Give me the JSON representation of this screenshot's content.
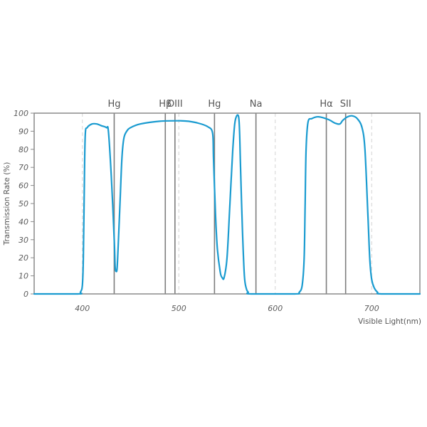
{
  "chart_data": {
    "type": "line",
    "xlabel": "Visible Light(nm)",
    "ylabel": "Transmission Rate (%)",
    "xlim": [
      350,
      750
    ],
    "ylim": [
      0,
      100
    ],
    "x_ticks": [
      400,
      500,
      600,
      700
    ],
    "x_tick_labels": [
      "400",
      "500",
      "600",
      "700"
    ],
    "y_ticks": [
      0,
      10,
      20,
      30,
      40,
      50,
      60,
      70,
      80,
      90,
      100
    ],
    "y_tick_labels": [
      "0",
      "10",
      "20",
      "30",
      "40",
      "50",
      "60",
      "70",
      "80",
      "90",
      "100"
    ],
    "grid": "dashed vertical at x ticks",
    "emission_lines": [
      {
        "label": "Hg",
        "x": 433
      },
      {
        "label": "Hβ",
        "x": 486
      },
      {
        "label": "OIII",
        "x": 496
      },
      {
        "label": "Hg",
        "x": 537
      },
      {
        "label": "Na",
        "x": 580
      },
      {
        "label": "Hα",
        "x": 653
      },
      {
        "label": "SII",
        "x": 673
      }
    ],
    "series": [
      {
        "color": "#1a9bd0",
        "points": [
          [
            350,
            0
          ],
          [
            395,
            0
          ],
          [
            398,
            1
          ],
          [
            400,
            5
          ],
          [
            401,
            20
          ],
          [
            402,
            60
          ],
          [
            403,
            88
          ],
          [
            405,
            92
          ],
          [
            410,
            94
          ],
          [
            415,
            94
          ],
          [
            420,
            93
          ],
          [
            425,
            92
          ],
          [
            427,
            90
          ],
          [
            430,
            65
          ],
          [
            433,
            30
          ],
          [
            434,
            15
          ],
          [
            435,
            12.5
          ],
          [
            436,
            14
          ],
          [
            437,
            25
          ],
          [
            439,
            50
          ],
          [
            441,
            75
          ],
          [
            443,
            86
          ],
          [
            446,
            90
          ],
          [
            450,
            92
          ],
          [
            460,
            94
          ],
          [
            480,
            95.5
          ],
          [
            500,
            95.8
          ],
          [
            510,
            95.5
          ],
          [
            520,
            94.5
          ],
          [
            530,
            92.5
          ],
          [
            535,
            89
          ],
          [
            536,
            75
          ],
          [
            538,
            45
          ],
          [
            540,
            25
          ],
          [
            543,
            12
          ],
          [
            545,
            9
          ],
          [
            547,
            9
          ],
          [
            550,
            20
          ],
          [
            553,
            50
          ],
          [
            556,
            80
          ],
          [
            558,
            94
          ],
          [
            560,
            98.5
          ],
          [
            562,
            98
          ],
          [
            563,
            90
          ],
          [
            564,
            70
          ],
          [
            566,
            35
          ],
          [
            568,
            10
          ],
          [
            570,
            3
          ],
          [
            572,
            1
          ],
          [
            575,
            0
          ],
          [
            620,
            0
          ],
          [
            625,
            1
          ],
          [
            628,
            5
          ],
          [
            630,
            20
          ],
          [
            631,
            50
          ],
          [
            632,
            80
          ],
          [
            634,
            95
          ],
          [
            638,
            97
          ],
          [
            645,
            98
          ],
          [
            655,
            96.5
          ],
          [
            662,
            94.5
          ],
          [
            667,
            94
          ],
          [
            670,
            96
          ],
          [
            675,
            98
          ],
          [
            680,
            98.5
          ],
          [
            685,
            97
          ],
          [
            690,
            92
          ],
          [
            693,
            80
          ],
          [
            696,
            45
          ],
          [
            698,
            20
          ],
          [
            700,
            8
          ],
          [
            703,
            3
          ],
          [
            706,
            1
          ],
          [
            710,
            0
          ],
          [
            750,
            0
          ]
        ]
      }
    ]
  }
}
